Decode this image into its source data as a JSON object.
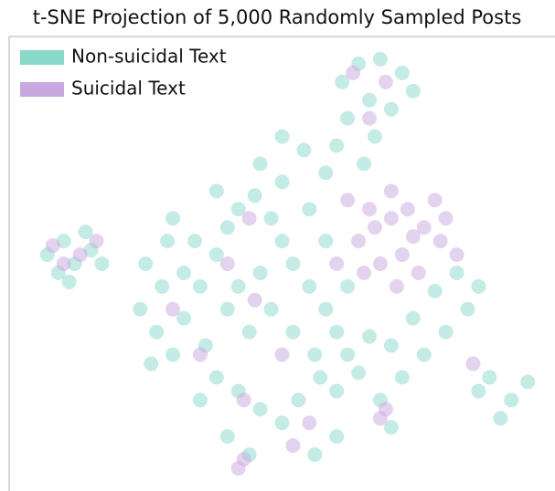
{
  "chart_data": {
    "type": "scatter",
    "title": "t-SNE Projection of 5,000 Randomly Sampled Posts",
    "xlim": [
      0,
      100
    ],
    "ylim": [
      0,
      100
    ],
    "series": [
      {
        "name": "Non-suicidal Text",
        "color": "#8ad8cb",
        "x": [
          7,
          10,
          12,
          15,
          9,
          14,
          17,
          11,
          61,
          64,
          68,
          72,
          66,
          62,
          70,
          74,
          67,
          60,
          65,
          25,
          28,
          24,
          27,
          30,
          26,
          32,
          35,
          38,
          40,
          42,
          45,
          48,
          50,
          52,
          55,
          58,
          60,
          62,
          57,
          53,
          50,
          46,
          42,
          38,
          35,
          40,
          44,
          36,
          44,
          48,
          52,
          56,
          60,
          64,
          68,
          72,
          76,
          80,
          84,
          86,
          82,
          78,
          74,
          70,
          88,
          92,
          95,
          90,
          86,
          46,
          42,
          34,
          30,
          38,
          50,
          55,
          58,
          54,
          50,
          46,
          66,
          62,
          58,
          70,
          60,
          56,
          32,
          29,
          40
        ],
        "values": [
          52,
          55,
          50,
          53,
          48,
          57,
          50,
          46,
          90,
          94,
          95,
          92,
          86,
          82,
          84,
          88,
          78,
          76,
          72,
          50,
          45,
          40,
          35,
          30,
          28,
          38,
          45,
          52,
          58,
          62,
          65,
          60,
          55,
          50,
          45,
          40,
          35,
          30,
          25,
          20,
          15,
          18,
          22,
          25,
          20,
          12,
          8,
          32,
          35,
          40,
          35,
          30,
          22,
          26,
          20,
          25,
          30,
          35,
          40,
          45,
          48,
          44,
          38,
          32,
          25,
          20,
          24,
          16,
          22,
          48,
          45,
          55,
          60,
          66,
          68,
          62,
          70,
          75,
          78,
          72,
          34,
          45,
          55,
          14,
          12,
          8,
          48,
          55,
          40
        ]
      },
      {
        "name": "Suicidal Text",
        "color": "#c9a8e0",
        "x": [
          8,
          13,
          10,
          16,
          63,
          69,
          66,
          64,
          67,
          70,
          73,
          76,
          79,
          72,
          68,
          75,
          80,
          66,
          62,
          70,
          78,
          74,
          71,
          65,
          82,
          40,
          45,
          35,
          50,
          55,
          68,
          69,
          43,
          30,
          85,
          60,
          44,
          42,
          43,
          52
        ],
        "values": [
          54,
          52,
          50,
          55,
          92,
          90,
          82,
          55,
          58,
          60,
          62,
          58,
          55,
          52,
          50,
          48,
          60,
          62,
          64,
          66,
          64,
          56,
          45,
          48,
          52,
          50,
          42,
          30,
          30,
          15,
          16,
          18,
          20,
          40,
          28,
          50,
          60,
          5,
          7,
          10
        ]
      }
    ]
  }
}
